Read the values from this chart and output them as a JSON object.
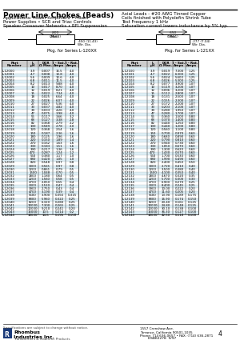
{
  "title": "Power Line Chokes (Beads)",
  "applications_line1": "Applications: Power Amplifiers • Filters",
  "applications_line2": "Power Supplies • SCR and Triac Controls",
  "applications_line3": "Speaker Crossover Networks • RFI Suppression",
  "specs_line1": "Axial Leads - #20 AWG Tinned Copper",
  "specs_line2": "Coils finished with Polyolefin Shrink Tube",
  "specs_line3": "Test Frequency 1 kHz",
  "specs_line4": "Saturation current lowers inductance by 5% typ.",
  "pkg_label1": "Pkg. for Series L-120XX",
  "pkg_label2": "Pkg. for Series L-121XX",
  "col_headers": [
    "Part\nNumber",
    "L\nμH",
    "DCR\nΩ Max.",
    "I - Sat.\nAmps",
    "I - Rat.\nAmps"
  ],
  "table1": [
    [
      "L-12000",
      "3.9",
      "0.007",
      "15.5",
      "4.0"
    ],
    [
      "L-12001",
      "4.7",
      "0.008",
      "13.8",
      "4.0"
    ],
    [
      "L-12002",
      "5.6",
      "0.009",
      "12.6",
      "4.0"
    ],
    [
      "L-12003",
      "6.8",
      "0.011",
      "11.5",
      "4.0"
    ],
    [
      "L-12004",
      "8.2",
      "0.013",
      "9.88",
      "4.0"
    ],
    [
      "L-12005",
      "10",
      "0.017",
      "8.70",
      "4.0"
    ],
    [
      "L-12006",
      "12",
      "0.019",
      "8.21",
      "4.0"
    ],
    [
      "L-12007",
      "15",
      "0.022",
      "7.34",
      "4.0"
    ],
    [
      "L-12008",
      "18",
      "0.025",
      "6.64",
      "4.0"
    ],
    [
      "L-12009",
      "22",
      "0.026",
      "6.07",
      "4.0"
    ],
    [
      "L-12010",
      "27",
      "0.027",
      "5.36",
      "4.0"
    ],
    [
      "L-12011",
      "33",
      "0.037",
      "4.82",
      "4.0"
    ],
    [
      "L-12012",
      "39",
      "0.033",
      "4.26",
      "4.0"
    ],
    [
      "L-12013",
      "47",
      "0.075",
      "3.98",
      "4.0"
    ],
    [
      "L-12014",
      "56",
      "0.117",
      "3.66",
      "3.2"
    ],
    [
      "L-12015",
      "68",
      "0.127",
      "3.38",
      "2.8"
    ],
    [
      "L-12016",
      "82",
      "0.368",
      "2.79",
      "2.2"
    ],
    [
      "L-12017",
      "100",
      "0.589",
      "2.78",
      "2.0"
    ],
    [
      "L-12018",
      "120",
      "0.368",
      "2.54",
      "1.6"
    ],
    [
      "L-12019",
      "150",
      "0.187",
      "2.36",
      "1.6"
    ],
    [
      "L-12020",
      "180",
      "0.125",
      "1.96",
      "1.6"
    ],
    [
      "L-12021",
      "220",
      "0.150",
      "1.89",
      "1.4"
    ],
    [
      "L-12022",
      "270",
      "0.162",
      "1.63",
      "1.6"
    ],
    [
      "L-12023",
      "330",
      "0.183",
      "1.51",
      "1.6"
    ],
    [
      "L-12024",
      "390",
      "0.217",
      "1.36",
      "1.6"
    ],
    [
      "L-12025",
      "470",
      "0.287",
      "1.24",
      "1.2"
    ],
    [
      "L-12026",
      "560",
      "0.380",
      "1.17",
      "1.0"
    ],
    [
      "L-12027",
      "680",
      "0.420",
      "1.05",
      "1.0"
    ],
    [
      "L-12028",
      "820",
      "0.548",
      "0.97",
      "0.8"
    ],
    [
      "L-12029",
      "1000",
      "0.565",
      "0.97",
      "0.8"
    ],
    [
      "L-12030",
      "1200",
      "0.861",
      "0.79",
      "0.5"
    ],
    [
      "L-12031",
      "1500",
      "1.048",
      "0.70",
      "0.5"
    ],
    [
      "L-12032",
      "1800",
      "1.180",
      "0.64",
      "0.5"
    ],
    [
      "L-12033",
      "2200",
      "1.560",
      "0.58",
      "0.5"
    ],
    [
      "L-12034",
      "2700",
      "2.050",
      "0.55",
      "0.4"
    ],
    [
      "L-12035",
      "3300",
      "2.530",
      "0.47",
      "0.4"
    ],
    [
      "L-12036",
      "3900",
      "2.750",
      "0.43",
      "0.4"
    ],
    [
      "L-12037",
      "4700",
      "3.190",
      "0.39",
      "0.4"
    ],
    [
      "L-12038",
      "5600",
      "3.900",
      "0.356",
      "0.315"
    ],
    [
      "L-12039",
      "6800",
      "5.960",
      "0.322",
      "0.25"
    ],
    [
      "L-12040",
      "8200",
      "6.320",
      "0.280",
      "0.25"
    ],
    [
      "L-12041",
      "10000",
      "7.300",
      "0.265",
      "0.25"
    ],
    [
      "L-12042",
      "12000",
      "9.210",
      "0.241",
      "0.20"
    ],
    [
      "L-12043",
      "15000",
      "10.5",
      "0.214",
      "0.2"
    ],
    [
      "L-12044",
      "18000",
      "14.6",
      "0.196",
      "0.158"
    ]
  ],
  "table2": [
    [
      "L-12100",
      "3.9",
      "0.019",
      "7.300",
      "1.25"
    ],
    [
      "L-12101",
      "4.7",
      "0.022",
      "6.300",
      "1.25"
    ],
    [
      "L-12102",
      "5.6",
      "0.024",
      "5.600",
      "1.25"
    ],
    [
      "L-12103",
      "6.8",
      "0.026",
      "5.300",
      "1.25"
    ],
    [
      "L-12104",
      "8.2",
      "0.077",
      "3.900",
      "1.07"
    ],
    [
      "L-12105",
      "10",
      "0.119",
      "3.200",
      "1.07"
    ],
    [
      "L-12106",
      "12",
      "0.096",
      "3.200",
      "1.07"
    ],
    [
      "L-12107",
      "15",
      "0.112",
      "2.800",
      "1.07"
    ],
    [
      "L-12108",
      "18",
      "0.131",
      "2.500",
      "1.07"
    ],
    [
      "L-12109",
      "22",
      "0.155",
      "2.300",
      "1.07"
    ],
    [
      "L-12110",
      "27",
      "0.172",
      "2.200",
      "1.07"
    ],
    [
      "L-12111",
      "33",
      "0.203",
      "2.100",
      "1.07"
    ],
    [
      "L-12112",
      "39",
      "0.280",
      "1.950",
      "1.07"
    ],
    [
      "L-12113",
      "47",
      "0.280",
      "1.700",
      "1.07"
    ],
    [
      "L-12114",
      "56",
      "0.360",
      "1.500",
      "0.80"
    ],
    [
      "L-12115",
      "68",
      "0.370",
      "1.400",
      "0.80"
    ],
    [
      "L-12116",
      "82",
      "0.440",
      "1.250",
      "0.80"
    ],
    [
      "L-12117",
      "100",
      "0.440",
      "1.200",
      "0.80"
    ],
    [
      "L-12118",
      "120",
      "0.560",
      "1.100",
      "0.80"
    ],
    [
      "L-12119",
      "150",
      "0.700",
      "0.970",
      "0.60"
    ],
    [
      "L-12120",
      "180",
      "0.680",
      "0.890",
      "0.60"
    ],
    [
      "L-12121",
      "220",
      "0.790",
      "0.810",
      "0.60"
    ],
    [
      "L-12122",
      "270",
      "0.940",
      "0.730",
      "0.60"
    ],
    [
      "L-12123",
      "330",
      "1.050",
      "0.670",
      "0.60"
    ],
    [
      "L-12124",
      "390",
      "1.300",
      "0.620",
      "0.60"
    ],
    [
      "L-12125",
      "470",
      "1.430",
      "0.570",
      "0.60"
    ],
    [
      "L-12126",
      "560",
      "1.700",
      "0.530",
      "0.60"
    ],
    [
      "L-12127",
      "680",
      "1.990",
      "0.490",
      "0.60"
    ],
    [
      "L-12128",
      "820",
      "2.400",
      "0.450",
      "0.50"
    ],
    [
      "L-12129",
      "1000",
      "2.720",
      "0.410",
      "0.40"
    ],
    [
      "L-12130",
      "1200",
      "3.500",
      "0.380",
      "0.40"
    ],
    [
      "L-12131",
      "1500",
      "4.100",
      "0.350",
      "0.40"
    ],
    [
      "L-12132",
      "1800",
      "4.670",
      "0.320",
      "0.35"
    ],
    [
      "L-12133",
      "2200",
      "5.700",
      "0.300",
      "0.30"
    ],
    [
      "L-12134",
      "2700",
      "6.900",
      "0.270",
      "0.25"
    ],
    [
      "L-12135",
      "3300",
      "8.400",
      "0.245",
      "0.25"
    ],
    [
      "L-12136",
      "3900",
      "10.00",
      "0.222",
      "0.20"
    ],
    [
      "L-12137",
      "4700",
      "11.60",
      "0.205",
      "0.20"
    ],
    [
      "L-12138",
      "5600",
      "13.90",
      "0.189",
      "0.175"
    ],
    [
      "L-12139",
      "6800",
      "16.90",
      "0.174",
      "0.150"
    ],
    [
      "L-12140",
      "8200",
      "20.40",
      "0.161",
      "0.125"
    ],
    [
      "L-12141",
      "10000",
      "24.80",
      "0.148",
      "0.125"
    ],
    [
      "L-12142",
      "12000",
      "30.10",
      "0.138",
      "0.100"
    ],
    [
      "L-12143",
      "15000",
      "36.30",
      "0.127",
      "0.100"
    ],
    [
      "L-12144",
      "18000",
      "42.50",
      "0.118",
      "0.100"
    ]
  ],
  "footer_note": "Specifications are subject to change without notice.",
  "company_name": "Rhombus\nIndustries Inc.",
  "company_sub": "Transformers & Magnetic Products",
  "address": "1557 Crenshaw Ave.\nTorrance, California 90501-1035\nPhone: 714 636-0657 • FAX: (714) 636-2871",
  "page_num": "4",
  "doc_num": "DSBK2278  9/97",
  "bg_color": "#ffffff"
}
